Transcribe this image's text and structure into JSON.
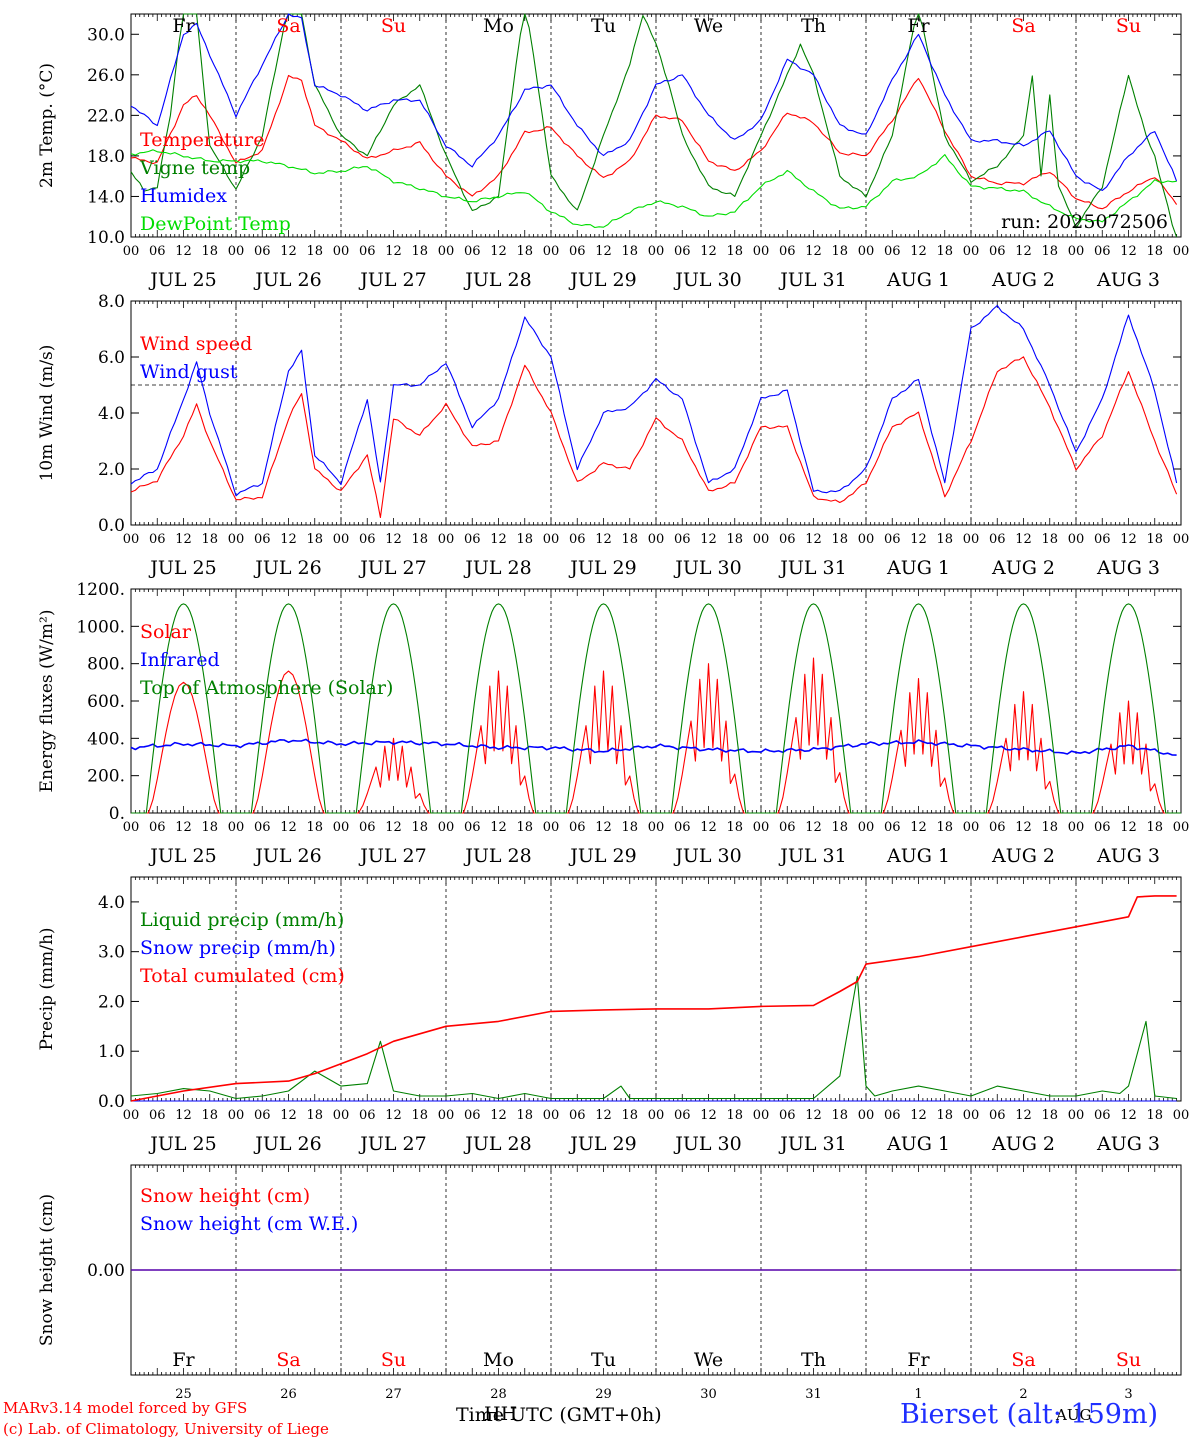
{
  "colors": {
    "red": "#ff0000",
    "blue": "#0000ff",
    "green": "#008000",
    "lightgreen": "#00dd00",
    "black": "#000000"
  },
  "days": [
    "Fr",
    "Sa",
    "Su",
    "Mo",
    "Tu",
    "We",
    "Th",
    "Fr",
    "Sa",
    "Su"
  ],
  "day_colors": [
    "black",
    "red",
    "red",
    "black",
    "black",
    "black",
    "black",
    "black",
    "red",
    "red"
  ],
  "dates": [
    "JUL 25",
    "JUL 26",
    "JUL 27",
    "JUL 28",
    "JUL 29",
    "JUL 30",
    "JUL 31",
    "AUG 1",
    "AUG 2",
    "AUG 3"
  ],
  "day_numbers": [
    "25",
    "26",
    "27",
    "28",
    "29",
    "30",
    "31",
    "1",
    "2",
    "3"
  ],
  "hour_ticks": [
    "00",
    "06",
    "12",
    "18"
  ],
  "run_label": "run: 2025072506",
  "footer": {
    "credit1": "MARv3.14 model forced by GFS",
    "credit2": "(c) Lab. of Climatology, University of Liege",
    "xtitle": "Time UTC (GMT+0h)",
    "overlay": "HH",
    "month": "AUG",
    "station": "Bierset (alt: 159m)"
  },
  "chart_data": [
    {
      "type": "line",
      "ylabel": "2m Temp. (°C)",
      "ylim": [
        10,
        32
      ],
      "yticks": [
        "10.0",
        "14.0",
        "18.0",
        "22.0",
        "26.0",
        "30.0"
      ],
      "series": [
        {
          "name": "Temperature",
          "color": "red",
          "x": [
            0,
            6,
            12,
            15,
            18,
            24,
            30,
            36,
            39,
            42,
            48,
            54,
            60,
            66,
            72,
            78,
            84,
            90,
            96,
            102,
            108,
            114,
            120,
            126,
            132,
            138,
            144,
            150,
            156,
            162,
            168,
            174,
            180,
            186,
            192,
            198,
            204,
            210,
            216,
            222,
            228,
            234,
            239
          ],
          "y": [
            17.8,
            17.3,
            23,
            24,
            22,
            17.3,
            18.5,
            25.8,
            25.5,
            21,
            19.5,
            17.7,
            18.5,
            19.3,
            16,
            14,
            16,
            20.3,
            20.8,
            18,
            15.8,
            17.5,
            22,
            21.5,
            17.5,
            16.5,
            18.5,
            22.3,
            21.3,
            18.3,
            18,
            21.5,
            25.8,
            20.5,
            16,
            15.3,
            15.3,
            16.5,
            13.8,
            12.8,
            14.5,
            16,
            13.2
          ]
        },
        {
          "name": "Vigne temp",
          "color": "green",
          "x": [
            0,
            3,
            6,
            9,
            12,
            15,
            18,
            24,
            30,
            36,
            39,
            42,
            48,
            54,
            60,
            66,
            72,
            78,
            84,
            88,
            90,
            92,
            96,
            102,
            108,
            114,
            117,
            120,
            123,
            126,
            132,
            138,
            144,
            150,
            153,
            156,
            162,
            168,
            174,
            180,
            186,
            192,
            198,
            204,
            206,
            208,
            210,
            212,
            216,
            222,
            228,
            232,
            234,
            239
          ],
          "y": [
            16.5,
            14.5,
            15,
            22,
            33,
            32,
            19,
            14.7,
            20,
            33,
            32,
            25,
            20,
            18,
            23,
            25,
            18,
            12.5,
            14,
            27,
            33,
            28,
            16,
            12.5,
            20,
            27,
            32,
            29,
            25,
            20,
            15,
            14,
            20,
            26,
            29,
            26,
            16,
            14,
            20,
            33,
            20,
            15.5,
            17,
            20,
            26,
            16,
            24,
            15,
            11,
            15,
            26,
            20,
            18,
            9.5
          ]
        },
        {
          "name": "Humidex",
          "color": "blue",
          "x": [
            0,
            6,
            12,
            15,
            18,
            24,
            30,
            36,
            39,
            42,
            48,
            54,
            60,
            66,
            72,
            78,
            84,
            90,
            96,
            102,
            108,
            114,
            120,
            126,
            132,
            138,
            144,
            150,
            156,
            162,
            168,
            174,
            180,
            186,
            192,
            198,
            204,
            210,
            216,
            222,
            228,
            234,
            239
          ],
          "y": [
            23,
            21,
            30,
            31,
            28,
            22,
            27,
            32,
            31.5,
            25,
            24,
            22.5,
            23.5,
            23.5,
            19,
            17,
            20,
            24.5,
            25,
            21,
            18,
            19.5,
            25,
            26,
            22,
            19.5,
            21.5,
            27.5,
            26,
            21,
            20,
            25.5,
            30,
            24,
            19.5,
            19.5,
            19,
            20.5,
            16,
            14.5,
            18,
            20.5,
            15.5
          ]
        },
        {
          "name": "DewPoint Temp",
          "color": "lightgreen",
          "x": [
            0,
            6,
            12,
            18,
            24,
            30,
            36,
            42,
            48,
            54,
            60,
            66,
            72,
            78,
            84,
            90,
            96,
            102,
            108,
            114,
            120,
            126,
            132,
            138,
            144,
            150,
            156,
            162,
            168,
            174,
            180,
            186,
            192,
            198,
            204,
            210,
            216,
            222,
            228,
            234,
            239
          ],
          "y": [
            18.2,
            18.5,
            18,
            17.5,
            17.5,
            17.5,
            17,
            16.3,
            16.5,
            17,
            15.5,
            14.8,
            14,
            13.5,
            14,
            14.5,
            12.5,
            11.2,
            11,
            12.5,
            13.5,
            13,
            12,
            12.5,
            15,
            16.5,
            14.5,
            12.8,
            13,
            15.5,
            16,
            18,
            15,
            14.8,
            14.5,
            13,
            11.8,
            11.5,
            13.5,
            15.5,
            15.5
          ]
        }
      ]
    },
    {
      "type": "line",
      "ylabel": "10m Wind (m/s)",
      "ylim": [
        0,
        8
      ],
      "yticks": [
        "0.0",
        "2.0",
        "4.0",
        "6.0",
        "8.0"
      ],
      "reference_line": 5.0,
      "series": [
        {
          "name": "Wind speed",
          "color": "red",
          "x": [
            0,
            6,
            12,
            15,
            18,
            24,
            30,
            36,
            39,
            42,
            48,
            54,
            57,
            60,
            66,
            72,
            78,
            84,
            90,
            96,
            102,
            108,
            114,
            120,
            126,
            132,
            138,
            144,
            150,
            156,
            162,
            168,
            174,
            180,
            186,
            192,
            198,
            204,
            210,
            216,
            222,
            228,
            234,
            239
          ],
          "y": [
            1.2,
            1.6,
            3.2,
            4.3,
            3,
            0.9,
            1,
            3.8,
            4.7,
            2,
            1.2,
            2.5,
            0.3,
            3.8,
            3.2,
            4.3,
            2.8,
            3,
            5.7,
            4,
            1.5,
            2.2,
            2,
            3.8,
            3,
            1.2,
            1.5,
            3.5,
            3.5,
            1,
            0.8,
            1.5,
            3.5,
            4,
            1,
            3,
            5.5,
            6,
            4.2,
            2,
            3.2,
            5.5,
            3,
            1.1
          ]
        },
        {
          "name": "Wind gust",
          "color": "blue",
          "x": [
            0,
            6,
            12,
            15,
            18,
            24,
            30,
            36,
            39,
            42,
            48,
            54,
            57,
            60,
            66,
            72,
            78,
            84,
            90,
            96,
            102,
            108,
            114,
            120,
            126,
            132,
            138,
            144,
            150,
            156,
            162,
            168,
            174,
            180,
            186,
            192,
            198,
            204,
            210,
            216,
            222,
            228,
            234,
            239
          ],
          "y": [
            1.5,
            2,
            4.5,
            5.8,
            4,
            1.1,
            1.5,
            5.5,
            6.2,
            2.5,
            1.5,
            4.5,
            1.5,
            5,
            5,
            5.8,
            3.5,
            4.5,
            7.4,
            6,
            2,
            4,
            4.2,
            5.2,
            4.5,
            1.5,
            2,
            4.5,
            4.8,
            1.2,
            1.2,
            2,
            4.5,
            5.2,
            1.5,
            7,
            7.8,
            7,
            5,
            2.6,
            4.5,
            7.5,
            4.8,
            1.5
          ]
        }
      ]
    },
    {
      "type": "line",
      "ylabel": "Energy fluxes (W/m²)",
      "ylim": [
        0,
        1200
      ],
      "yticks": [
        "0.",
        "200.",
        "400.",
        "600.",
        "800.",
        "1000.",
        "1200."
      ],
      "series": [
        {
          "name": "Solar",
          "color": "red",
          "peaks": [
            700,
            760,
            400,
            760,
            760,
            800,
            830,
            720,
            650,
            600
          ]
        },
        {
          "name": "Infrared",
          "color": "blue",
          "x": [
            0,
            12,
            24,
            36,
            48,
            60,
            72,
            84,
            96,
            108,
            120,
            132,
            144,
            156,
            168,
            180,
            192,
            204,
            216,
            228,
            239
          ],
          "y": [
            350,
            370,
            360,
            390,
            370,
            380,
            370,
            350,
            350,
            330,
            360,
            340,
            330,
            340,
            370,
            380,
            360,
            340,
            320,
            360,
            310
          ]
        },
        {
          "name": "Top of Atmosphere (Solar)",
          "color": "green",
          "peak": 1120
        }
      ]
    },
    {
      "type": "line",
      "ylabel": "Precip (mm/h)",
      "ylim": [
        0,
        4.5
      ],
      "yticks": [
        "0.0",
        "1.0",
        "2.0",
        "3.0",
        "4.0"
      ],
      "series": [
        {
          "name": "Liquid precip (mm/h)",
          "color": "green",
          "x": [
            0,
            6,
            12,
            18,
            24,
            30,
            36,
            42,
            48,
            54,
            57,
            60,
            66,
            72,
            78,
            84,
            90,
            96,
            108,
            112,
            114,
            120,
            144,
            156,
            162,
            166,
            168,
            170,
            174,
            180,
            186,
            192,
            198,
            204,
            210,
            216,
            222,
            226,
            228,
            232,
            234,
            239
          ],
          "y": [
            0.1,
            0.15,
            0.25,
            0.2,
            0.05,
            0.1,
            0.2,
            0.6,
            0.3,
            0.35,
            1.2,
            0.2,
            0.1,
            0.1,
            0.15,
            0.05,
            0.15,
            0.05,
            0.05,
            0.3,
            0.05,
            0.05,
            0.05,
            0.05,
            0.5,
            2.5,
            0.3,
            0.1,
            0.2,
            0.3,
            0.2,
            0.1,
            0.3,
            0.2,
            0.1,
            0.1,
            0.2,
            0.15,
            0.3,
            1.6,
            0.1,
            0.05
          ]
        },
        {
          "name": "Snow precip (mm/h)",
          "color": "blue",
          "x": [
            0,
            239
          ],
          "y": [
            0,
            0
          ]
        },
        {
          "name": "Total cumulated (cm)",
          "color": "red",
          "x": [
            0,
            12,
            24,
            36,
            42,
            48,
            54,
            60,
            72,
            84,
            96,
            108,
            120,
            132,
            144,
            156,
            162,
            166,
            168,
            180,
            192,
            204,
            216,
            228,
            230,
            234,
            239
          ],
          "y": [
            0,
            0.2,
            0.35,
            0.4,
            0.55,
            0.75,
            0.95,
            1.2,
            1.5,
            1.6,
            1.8,
            1.83,
            1.85,
            1.85,
            1.9,
            1.92,
            2.2,
            2.4,
            2.75,
            2.9,
            3.1,
            3.3,
            3.5,
            3.7,
            4.1,
            4.12,
            4.12
          ]
        }
      ]
    },
    {
      "type": "line",
      "ylabel": "Snow height (cm)",
      "ylim": [
        -1,
        1
      ],
      "yticks": [
        "0.00"
      ],
      "series": [
        {
          "name": "Snow height (cm)",
          "color": "red",
          "x": [
            0,
            239
          ],
          "y": [
            0,
            0
          ]
        },
        {
          "name": "Snow height (cm W.E.)",
          "color": "blue",
          "x": [
            0,
            239
          ],
          "y": [
            0,
            0
          ]
        }
      ]
    }
  ]
}
